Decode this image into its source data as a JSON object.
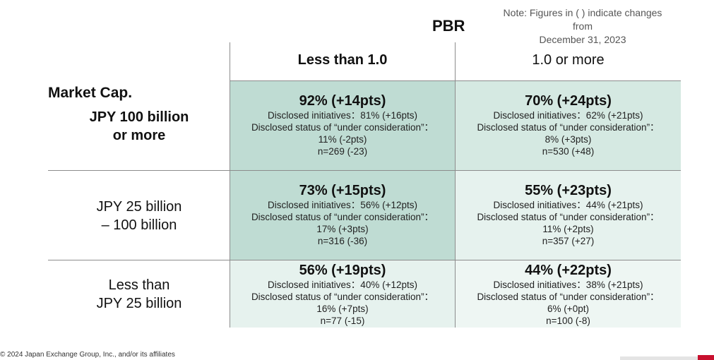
{
  "note": {
    "line1": "Note: Figures in ( ) indicate changes from",
    "line2": "December 31, 2023"
  },
  "header": {
    "pbr_label": "PBR",
    "col_less": "Less than 1.0",
    "col_more": "1.0 or more"
  },
  "row_axis": {
    "market_cap_label": "Market Cap."
  },
  "rows": [
    {
      "label_line1": "JPY 100 billion",
      "label_line2": "or more",
      "cells": [
        {
          "headline": "92% (+14pts)",
          "disclosed": "Disclosed initiatives：81% (+16pts)",
          "consideration": "Disclosed status of “under consideration”：",
          "consideration_value": "11% (-2pts)",
          "n": "n=269 (-23)",
          "bg": "#bfdcd3"
        },
        {
          "headline": "70% (+24pts)",
          "disclosed": "Disclosed initiatives：62% (+21pts)",
          "consideration": "Disclosed status of “under consideration”：",
          "consideration_value": "8% (+3pts)",
          "n": "n=530 (+48)",
          "bg": "#d5e9e2"
        }
      ]
    },
    {
      "label_line1": "JPY 25 billion",
      "label_line2": "– 100 billion",
      "cells": [
        {
          "headline": "73% (+15pts)",
          "disclosed": "Disclosed initiatives：56% (+12pts)",
          "consideration": "Disclosed status of “under consideration”：",
          "consideration_value": "17% (+3pts)",
          "n": "n=316 (-36)",
          "bg": "#bfdcd3"
        },
        {
          "headline": "55% (+23pts)",
          "disclosed": "Disclosed initiatives：44% (+21pts)",
          "consideration": "Disclosed status of “under consideration”：",
          "consideration_value": "11% (+2pts)",
          "n": "n=357 (+27)",
          "bg": "#e6f2ee"
        }
      ]
    },
    {
      "label_line1": "Less than",
      "label_line2": "JPY 25 billion",
      "cells": [
        {
          "headline": "56% (+19pts)",
          "disclosed": "Disclosed initiatives：40% (+12pts)",
          "consideration": "Disclosed status of “under consideration”：",
          "consideration_value": "16% (+7pts)",
          "n": "n=77 (-15)",
          "bg": "#e6f2ee"
        },
        {
          "headline": "44% (+22pts)",
          "disclosed": "Disclosed initiatives：38% (+21pts)",
          "consideration": "Disclosed status of “under consideration”：",
          "consideration_value": "6% (+0pt)",
          "n": "n=100 (-8)",
          "bg": "#eef6f3"
        }
      ]
    }
  ],
  "footer": {
    "copyright": "© 2024 Japan Exchange Group, Inc., and/or its affiliates"
  }
}
